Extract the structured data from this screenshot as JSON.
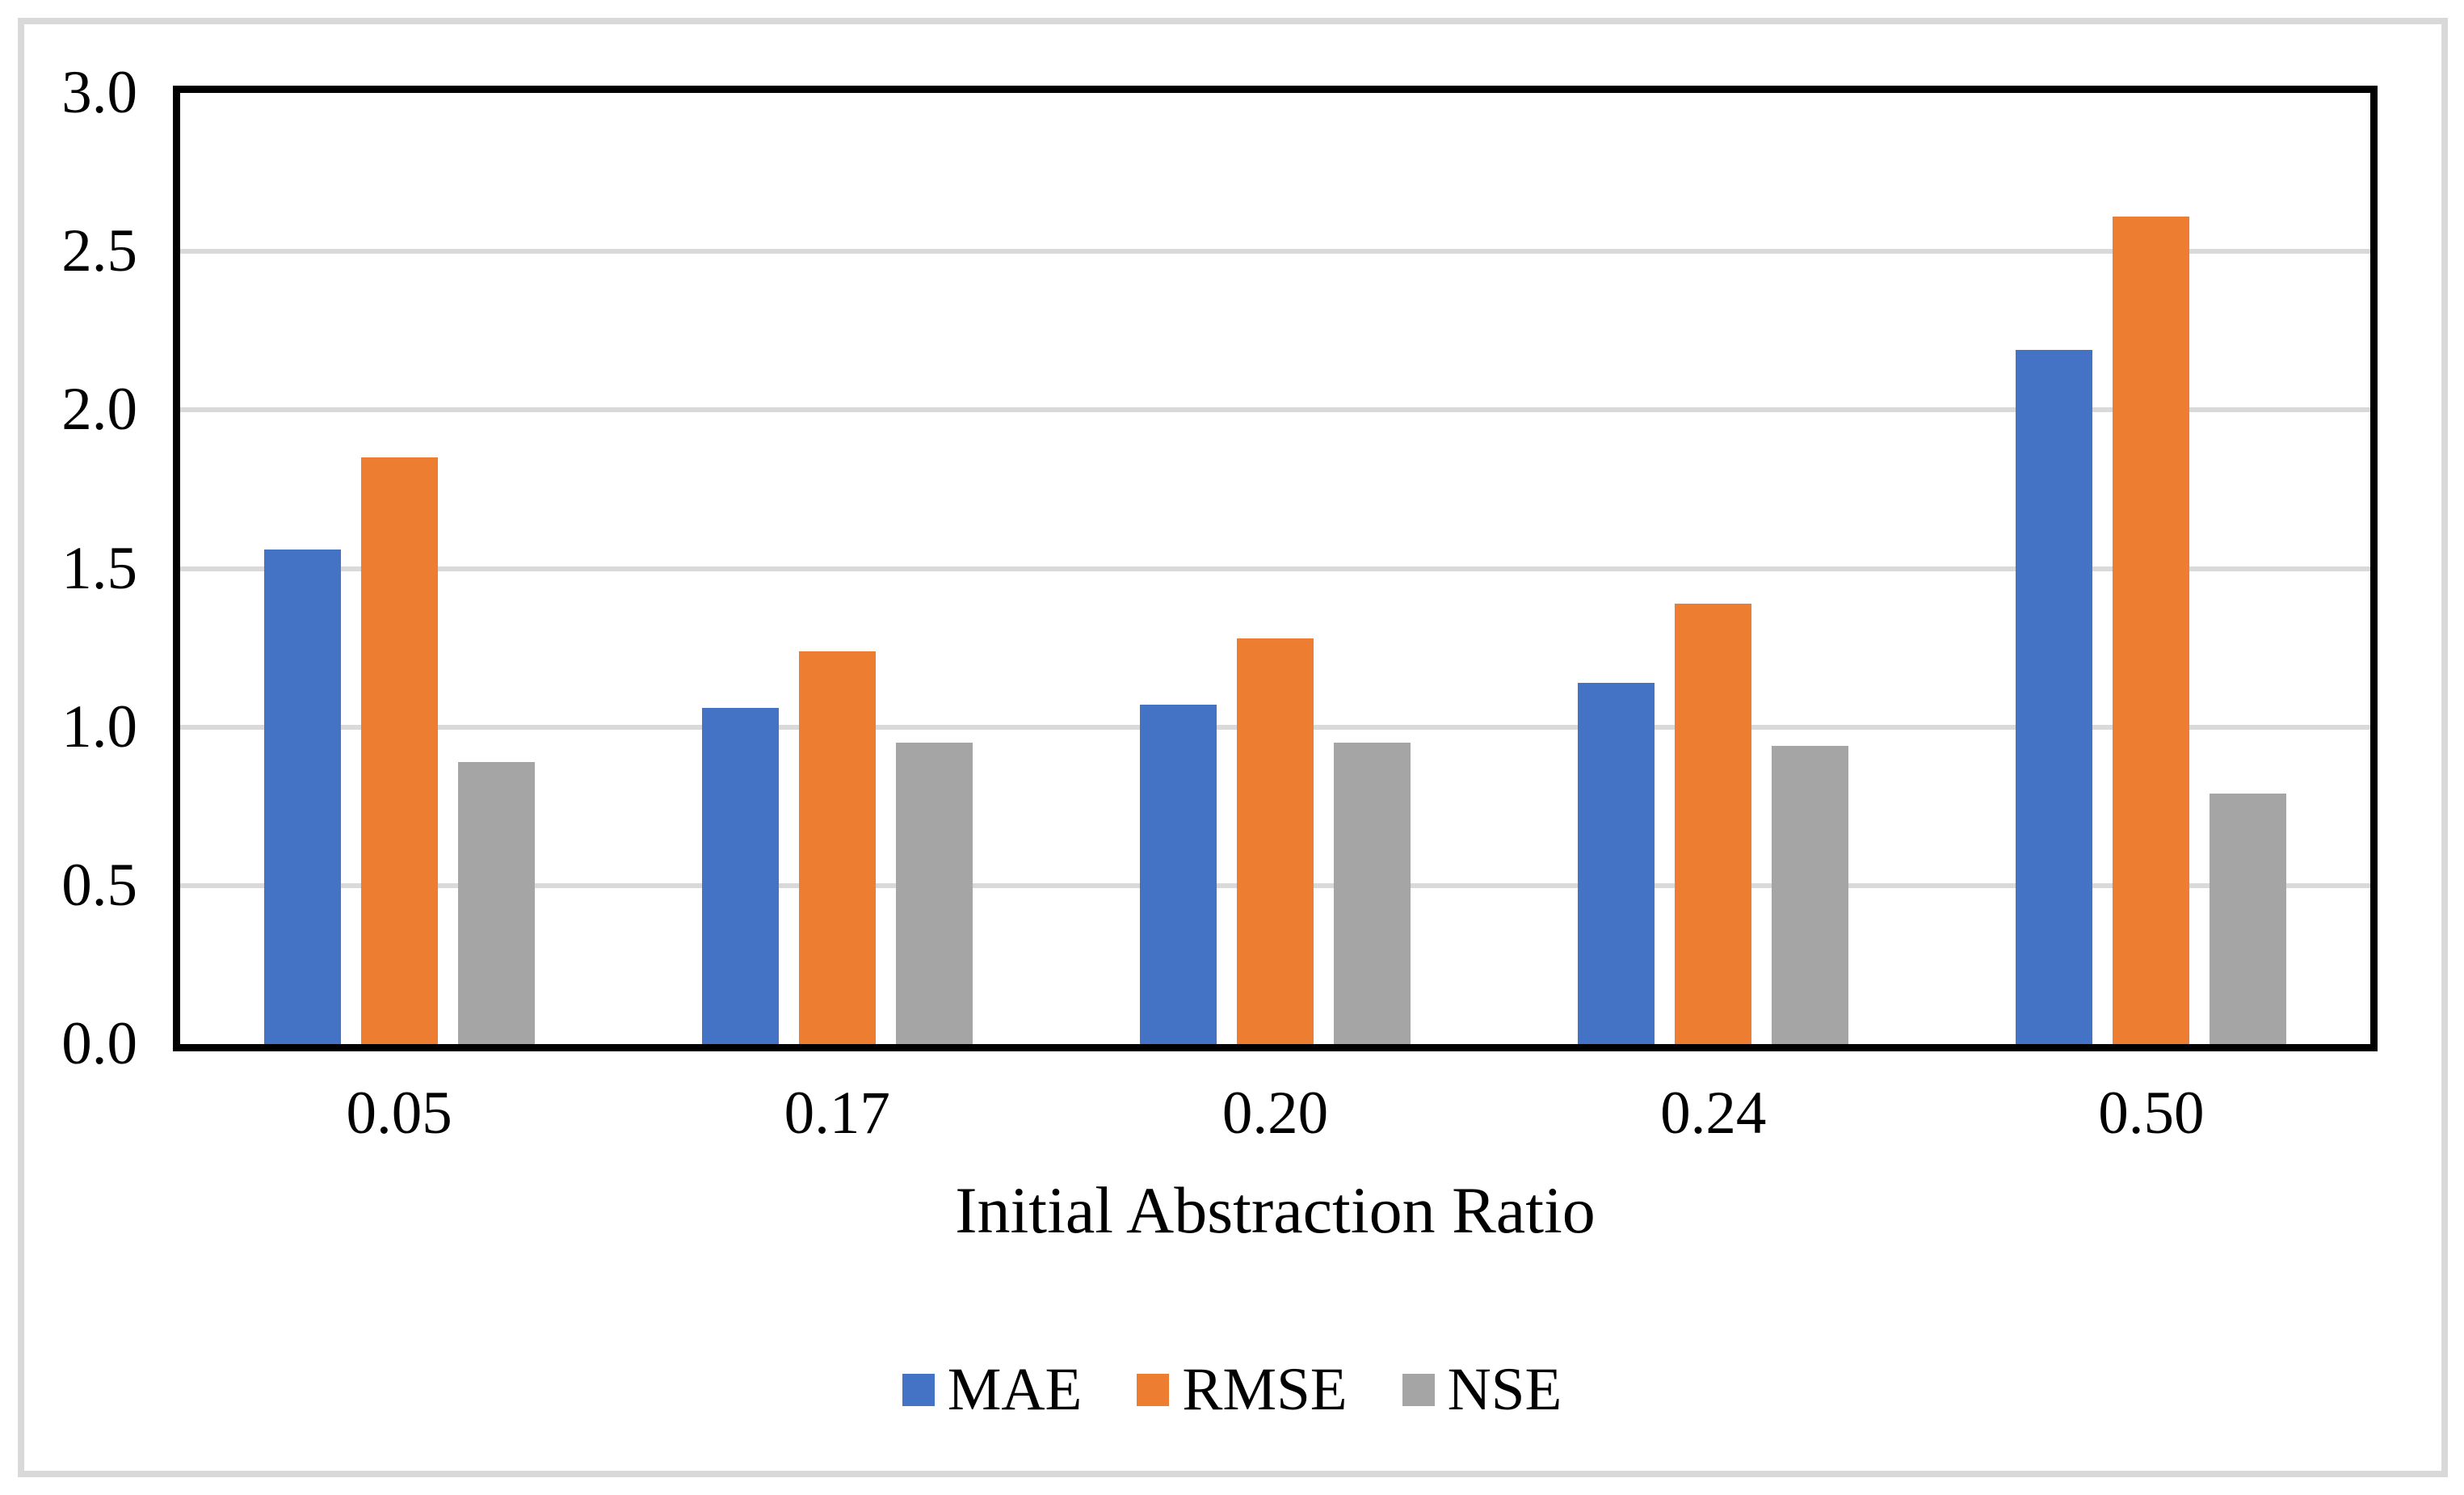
{
  "chart_data": {
    "type": "bar",
    "title": "",
    "xlabel": "Initial Abstraction Ratio",
    "ylabel": "",
    "categories": [
      "0.05",
      "0.17",
      "0.20",
      "0.24",
      "0.50"
    ],
    "series": [
      {
        "name": "MAE",
        "color": "#4472C4",
        "values": [
          1.56,
          1.06,
          1.07,
          1.14,
          2.19
        ]
      },
      {
        "name": "RMSE",
        "color": "#ED7D31",
        "values": [
          1.85,
          1.24,
          1.28,
          1.39,
          2.61
        ]
      },
      {
        "name": "NSE",
        "color": "#A5A5A5",
        "values": [
          0.89,
          0.95,
          0.95,
          0.94,
          0.79
        ]
      }
    ],
    "ylim": [
      0,
      3
    ],
    "ytick_step": 0.5,
    "yticks": [
      "0.0",
      "0.5",
      "1.0",
      "1.5",
      "2.0",
      "2.5",
      "3.0"
    ],
    "grid": "horizontal",
    "gridline_values": [
      0.5,
      1.0,
      1.5,
      2.0,
      2.5
    ],
    "legend_position": "bottom",
    "colors": {
      "gridline": "#D9D9D9",
      "axis": "#000000",
      "figure_border": "#D9D9D9",
      "background": "#FFFFFF"
    }
  }
}
